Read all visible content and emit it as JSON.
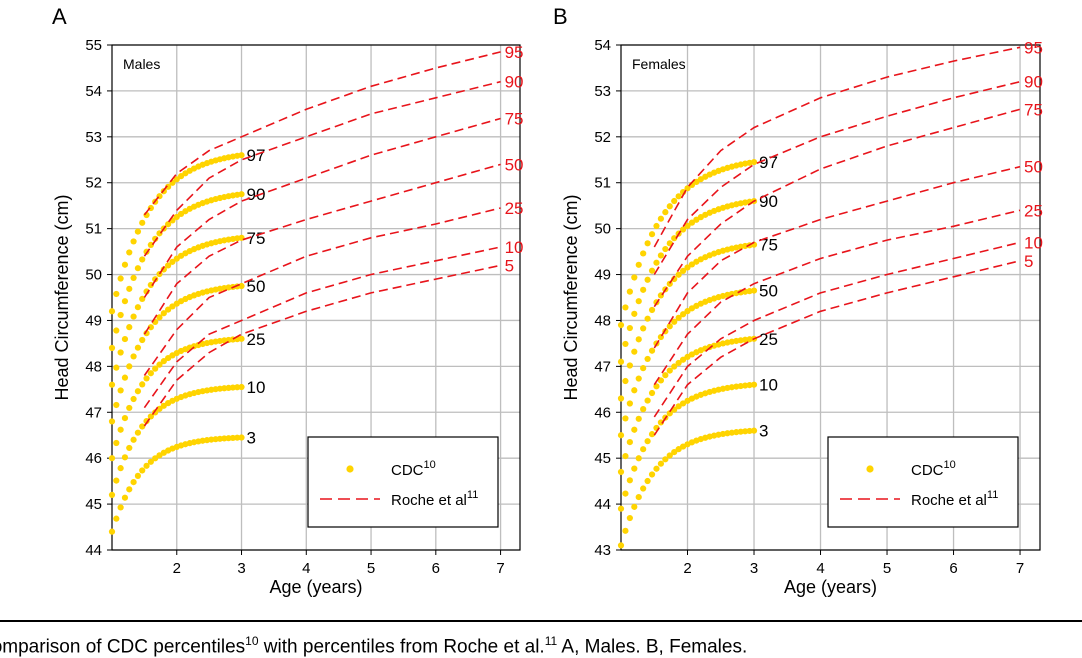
{
  "colors": {
    "cdc": "#FFD400",
    "roche": "#E8141B",
    "grid": "#BEBEBE",
    "axis": "#000000"
  },
  "legend": {
    "cdc_label": "CDC",
    "cdc_ref": "10",
    "roche_label": "Roche et al",
    "roche_ref": "11"
  },
  "caption": {
    "text": "Comparison of CDC percentiles",
    "ref1": "10",
    "mid": " with percentiles from Roche et al.",
    "ref2": "11",
    "tail": " A, Males. B, Females."
  },
  "chart_data": [
    {
      "panel": "A",
      "type": "line",
      "inset_label": "Males",
      "xlabel": "Age (years)",
      "ylabel": "Head Circumference (cm)",
      "xlim": [
        1.0,
        7.3
      ],
      "ylim": [
        44,
        55
      ],
      "xticks": [
        2,
        3,
        4,
        5,
        6,
        7
      ],
      "yticks": [
        44,
        45,
        46,
        47,
        48,
        49,
        50,
        51,
        52,
        53,
        54,
        55
      ],
      "grid": true,
      "legend_position": "bottom-right",
      "cdc_series": [
        {
          "name": "3",
          "start": 44.4,
          "end": 46.45,
          "k": 2.2
        },
        {
          "name": "10",
          "start": 45.2,
          "end": 47.55,
          "k": 2.1
        },
        {
          "name": "25",
          "start": 46.0,
          "end": 48.6,
          "k": 2.0
        },
        {
          "name": "50",
          "start": 46.8,
          "end": 49.75,
          "k": 1.9
        },
        {
          "name": "75",
          "start": 47.6,
          "end": 50.8,
          "k": 1.8
        },
        {
          "name": "90",
          "start": 48.4,
          "end": 51.75,
          "k": 1.75
        },
        {
          "name": "97",
          "start": 49.2,
          "end": 52.6,
          "k": 1.7
        }
      ],
      "roche_series": [
        {
          "name": "5",
          "x": [
            1.5,
            2.0,
            2.5,
            3.0,
            4.0,
            5.0,
            6.0,
            7.0
          ],
          "y": [
            46.7,
            47.7,
            48.3,
            48.7,
            49.2,
            49.6,
            49.9,
            50.2
          ]
        },
        {
          "name": "10",
          "x": [
            1.5,
            2.0,
            2.5,
            3.0,
            4.0,
            5.0,
            6.0,
            7.0
          ],
          "y": [
            47.1,
            48.1,
            48.7,
            49.0,
            49.6,
            50.0,
            50.3,
            50.6
          ]
        },
        {
          "name": "25",
          "x": [
            1.5,
            2.0,
            2.5,
            3.0,
            4.0,
            5.0,
            6.0,
            7.0
          ],
          "y": [
            47.8,
            48.8,
            49.5,
            49.8,
            50.4,
            50.8,
            51.1,
            51.45
          ]
        },
        {
          "name": "50",
          "x": [
            1.5,
            2.0,
            2.5,
            3.0,
            4.0,
            5.0,
            6.0,
            7.0
          ],
          "y": [
            48.7,
            49.8,
            50.4,
            50.75,
            51.2,
            51.6,
            52.0,
            52.4
          ]
        },
        {
          "name": "75",
          "x": [
            1.5,
            2.0,
            2.5,
            3.0,
            4.0,
            5.0,
            6.0,
            7.0
          ],
          "y": [
            49.5,
            50.6,
            51.2,
            51.6,
            52.1,
            52.6,
            53.0,
            53.4
          ]
        },
        {
          "name": "90",
          "x": [
            1.5,
            2.0,
            2.5,
            3.0,
            4.0,
            5.0,
            6.0,
            7.0
          ],
          "y": [
            50.4,
            51.4,
            52.1,
            52.5,
            53.0,
            53.5,
            53.85,
            54.2
          ]
        },
        {
          "name": "95",
          "x": [
            1.5,
            2.0,
            2.5,
            3.0,
            4.0,
            5.0,
            6.0,
            7.0
          ],
          "y": [
            51.3,
            52.2,
            52.7,
            53.0,
            53.6,
            54.1,
            54.5,
            54.85
          ]
        }
      ]
    },
    {
      "panel": "B",
      "type": "line",
      "inset_label": "Females",
      "xlabel": "Age (years)",
      "ylabel": "Head Circumference (cm)",
      "xlim": [
        1.0,
        7.3
      ],
      "ylim": [
        43,
        54
      ],
      "xticks": [
        2,
        3,
        4,
        5,
        6,
        7
      ],
      "yticks": [
        43,
        44,
        45,
        46,
        47,
        48,
        49,
        50,
        51,
        52,
        53,
        54
      ],
      "grid": true,
      "legend_position": "bottom-right",
      "cdc_series": [
        {
          "name": "3",
          "start": 43.1,
          "end": 45.6,
          "k": 2.0
        },
        {
          "name": "10",
          "start": 43.9,
          "end": 46.6,
          "k": 1.9
        },
        {
          "name": "25",
          "start": 44.7,
          "end": 47.6,
          "k": 1.85
        },
        {
          "name": "50",
          "start": 45.5,
          "end": 48.65,
          "k": 1.8
        },
        {
          "name": "75",
          "start": 46.3,
          "end": 49.65,
          "k": 1.75
        },
        {
          "name": "90",
          "start": 47.1,
          "end": 50.6,
          "k": 1.7
        },
        {
          "name": "97",
          "start": 47.9,
          "end": 51.45,
          "k": 1.65
        }
      ],
      "roche_series": [
        {
          "name": "5",
          "x": [
            1.5,
            2.0,
            2.5,
            3.0,
            4.0,
            5.0,
            6.0,
            7.0
          ],
          "y": [
            45.5,
            46.6,
            47.2,
            47.6,
            48.2,
            48.6,
            48.95,
            49.3
          ]
        },
        {
          "name": "10",
          "x": [
            1.5,
            2.0,
            2.5,
            3.0,
            4.0,
            5.0,
            6.0,
            7.0
          ],
          "y": [
            45.9,
            47.0,
            47.6,
            48.0,
            48.6,
            49.0,
            49.35,
            49.7
          ]
        },
        {
          "name": "25",
          "x": [
            1.5,
            2.0,
            2.5,
            3.0,
            4.0,
            5.0,
            6.0,
            7.0
          ],
          "y": [
            46.6,
            47.7,
            48.4,
            48.8,
            49.35,
            49.75,
            50.05,
            50.4
          ]
        },
        {
          "name": "50",
          "x": [
            1.5,
            2.0,
            2.5,
            3.0,
            4.0,
            5.0,
            6.0,
            7.0
          ],
          "y": [
            47.4,
            48.6,
            49.3,
            49.7,
            50.2,
            50.6,
            51.0,
            51.35
          ]
        },
        {
          "name": "75",
          "x": [
            1.5,
            2.0,
            2.5,
            3.0,
            4.0,
            5.0,
            6.0,
            7.0
          ],
          "y": [
            48.3,
            49.4,
            50.1,
            50.6,
            51.3,
            51.8,
            52.2,
            52.6
          ]
        },
        {
          "name": "90",
          "x": [
            1.5,
            2.0,
            2.5,
            3.0,
            4.0,
            5.0,
            6.0,
            7.0
          ],
          "y": [
            49.0,
            50.2,
            50.9,
            51.4,
            52.0,
            52.45,
            52.85,
            53.2
          ]
        },
        {
          "name": "95",
          "x": [
            1.5,
            2.0,
            2.5,
            3.0,
            4.0,
            5.0,
            6.0,
            7.0
          ],
          "y": [
            49.6,
            50.9,
            51.7,
            52.2,
            52.85,
            53.3,
            53.65,
            53.95
          ]
        }
      ]
    }
  ]
}
